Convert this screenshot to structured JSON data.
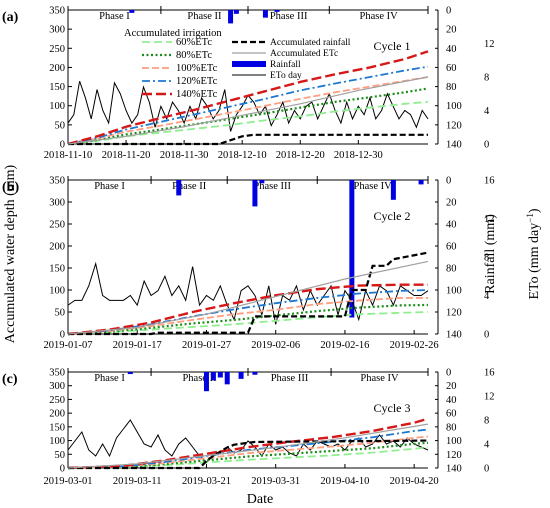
{
  "figure": {
    "y_left_label": "Accumulated water depth (mm)",
    "y_right_rain_label": "Rainfall (mm)",
    "y_right_eto_label": "ETo (mm day",
    "y_right_eto_sup": "−1",
    "y_right_eto_close": ")",
    "x_label": "Date",
    "legend_title": "Accumulated irrigation",
    "legend": [
      {
        "label": "60%ETc",
        "color": "#90ee90",
        "dash": "8,4",
        "width": 1.8
      },
      {
        "label": "80%ETc",
        "color": "#1a8c1a",
        "dash": "2,2.5",
        "width": 2.2
      },
      {
        "label": "100%ETc",
        "color": "#ff9e80",
        "dash": "7,3",
        "width": 1.8
      },
      {
        "label": "120%ETc",
        "color": "#1e78d2",
        "dash": "8,3,2,3",
        "width": 1.8
      },
      {
        "label": "140%ETc",
        "color": "#d61818",
        "dash": "10,4",
        "width": 2.4
      },
      {
        "label": "Accumulated rainfall",
        "color": "#000000",
        "dash": "6,3",
        "width": 2.2
      },
      {
        "label": "Accumulated ETc",
        "color": "#a0a0a0",
        "dash": "",
        "width": 1.2
      },
      {
        "label": "Rainfall",
        "color": "#0000e0",
        "dash": "",
        "width": 6
      },
      {
        "label": "ETo day",
        "color": "#000000",
        "dash": "",
        "width": 1
      }
    ]
  },
  "chart_data": [
    {
      "type": "line",
      "panel_label": "(a)",
      "cycle_label": "Cycle 1",
      "phases": [
        "Phase I",
        "Phase II",
        "Phase III",
        "Phase IV"
      ],
      "x_ticks": [
        "2018-11-10",
        "2018-11-20",
        "2018-11-30",
        "2018-12-10",
        "2018-12-20",
        "2018-12-30"
      ],
      "x_range_days": [
        0,
        62
      ],
      "phase_boundaries_days": [
        0,
        16,
        31,
        45,
        62
      ],
      "y_left_range": [
        0,
        350
      ],
      "y_left_ticks": [
        0,
        50,
        100,
        150,
        200,
        250,
        300,
        350
      ],
      "y_rain_range": [
        0,
        140
      ],
      "y_rain_ticks": [
        0,
        20,
        40,
        60,
        80,
        100,
        120,
        140
      ],
      "y_eto_range": [
        0,
        16
      ],
      "y_eto_ticks": [
        0,
        4,
        8,
        12,
        16
      ],
      "y_eto_labels": [
        "0",
        "4",
        "8",
        "12",
        ""
      ],
      "series": [
        {
          "name": "60%ETc",
          "x": [
            0,
            5,
            10,
            16,
            22,
            28,
            34,
            40,
            46,
            52,
            58,
            62
          ],
          "y": [
            0,
            8,
            20,
            30,
            40,
            50,
            62,
            72,
            85,
            95,
            105,
            110
          ]
        },
        {
          "name": "80%ETc",
          "x": [
            0,
            5,
            10,
            16,
            22,
            28,
            34,
            40,
            46,
            52,
            58,
            62
          ],
          "y": [
            0,
            10,
            25,
            38,
            52,
            66,
            80,
            95,
            110,
            122,
            135,
            145
          ]
        },
        {
          "name": "100%ETc",
          "x": [
            0,
            5,
            10,
            16,
            22,
            28,
            34,
            40,
            46,
            52,
            58,
            62
          ],
          "y": [
            0,
            14,
            32,
            48,
            65,
            82,
            100,
            118,
            135,
            150,
            165,
            175
          ]
        },
        {
          "name": "120%ETc",
          "x": [
            0,
            5,
            10,
            16,
            22,
            28,
            34,
            40,
            46,
            52,
            58,
            62
          ],
          "y": [
            0,
            16,
            38,
            58,
            78,
            98,
            118,
            140,
            158,
            175,
            192,
            202
          ]
        },
        {
          "name": "140%ETc",
          "x": [
            0,
            5,
            10,
            16,
            22,
            28,
            34,
            40,
            46,
            52,
            58,
            62
          ],
          "y": [
            0,
            20,
            45,
            68,
            90,
            114,
            138,
            162,
            182,
            200,
            222,
            242
          ]
        },
        {
          "name": "Accumulated rainfall",
          "x": [
            0,
            26,
            28,
            30,
            32,
            62
          ],
          "y": [
            0,
            0,
            10,
            20,
            24,
            24
          ]
        },
        {
          "name": "Accumulated ETc",
          "x": [
            0,
            10,
            20,
            30,
            40,
            50,
            62
          ],
          "y": [
            0,
            20,
            45,
            75,
            105,
            140,
            175
          ]
        }
      ],
      "rainfall": {
        "x": [
          11,
          28,
          29,
          34,
          36
        ],
        "y": [
          3,
          14,
          4,
          8,
          2
        ]
      },
      "eto": {
        "x": [
          0,
          1,
          2,
          3,
          4,
          5,
          6,
          7,
          8,
          9,
          10,
          11,
          12,
          13,
          14,
          15,
          16,
          17,
          18,
          19,
          20,
          21,
          22,
          23,
          24,
          25,
          26,
          27,
          28,
          29,
          30,
          31,
          32,
          33,
          34,
          35,
          36,
          37,
          38,
          39,
          40,
          41,
          42,
          43,
          44,
          45,
          46,
          47,
          48,
          49,
          50,
          51,
          52,
          53,
          54,
          55,
          56,
          57,
          58,
          59,
          60,
          61,
          62
        ],
        "y": [
          2.5,
          3.5,
          7.5,
          5.5,
          3,
          6.5,
          4,
          2.5,
          7.3,
          6,
          4,
          2.5,
          3.5,
          6.8,
          5,
          2,
          4.5,
          3,
          5,
          4,
          2.5,
          4.5,
          3,
          5.5,
          4.5,
          3,
          4,
          6.5,
          1.5,
          3.5,
          4.5,
          5.8,
          5,
          3.5,
          4.5,
          2.2,
          3.5,
          5,
          2.5,
          4,
          3,
          4.5,
          5,
          3,
          4.5,
          6,
          4,
          2.5,
          5,
          3,
          4.5,
          3.5,
          5.5,
          3,
          4,
          6,
          4.5,
          3,
          4,
          3.5,
          2,
          4,
          3
        ]
      }
    },
    {
      "type": "line",
      "panel_label": "(b)",
      "cycle_label": "Cycle 2",
      "phases": [
        "Phase I",
        "Phase II",
        "Phase III",
        "Phase IV"
      ],
      "x_ticks": [
        "2019-01-07",
        "2019-01-17",
        "2019-01-27",
        "2019-02-06",
        "2019-02-16",
        "2019-02-26"
      ],
      "x_range_days": [
        0,
        52
      ],
      "phase_boundaries_days": [
        0,
        12,
        23,
        36,
        52
      ],
      "y_left_range": [
        0,
        350
      ],
      "y_left_ticks": [
        0,
        50,
        100,
        150,
        200,
        250,
        300,
        350
      ],
      "y_rain_range": [
        0,
        140
      ],
      "y_rain_ticks": [
        0,
        20,
        40,
        60,
        80,
        100,
        120,
        140
      ],
      "y_eto_range": [
        0,
        16
      ],
      "y_eto_ticks": [
        0,
        4,
        8,
        12,
        16
      ],
      "y_eto_labels": [
        "0",
        "4",
        "8",
        "12",
        "16"
      ],
      "series": [
        {
          "name": "60%ETc",
          "x": [
            0,
            6,
            12,
            18,
            24,
            30,
            36,
            42,
            48,
            52
          ],
          "y": [
            0,
            4,
            10,
            16,
            22,
            30,
            38,
            45,
            48,
            50
          ]
        },
        {
          "name": "80%ETc",
          "x": [
            0,
            6,
            12,
            18,
            24,
            30,
            36,
            42,
            48,
            52
          ],
          "y": [
            0,
            5,
            14,
            24,
            32,
            42,
            52,
            60,
            65,
            66
          ]
        },
        {
          "name": "100%ETc",
          "x": [
            0,
            6,
            12,
            18,
            24,
            30,
            36,
            42,
            48,
            52
          ],
          "y": [
            0,
            7,
            18,
            32,
            45,
            55,
            68,
            76,
            82,
            82
          ]
        },
        {
          "name": "120%ETc",
          "x": [
            0,
            6,
            12,
            18,
            24,
            30,
            36,
            42,
            48,
            52
          ],
          "y": [
            0,
            8,
            22,
            40,
            56,
            70,
            82,
            92,
            98,
            100
          ]
        },
        {
          "name": "140%ETc",
          "x": [
            0,
            6,
            12,
            18,
            24,
            30,
            36,
            42,
            48,
            52
          ],
          "y": [
            0,
            10,
            26,
            50,
            70,
            88,
            102,
            110,
            112,
            112
          ]
        },
        {
          "name": "Accumulated rainfall",
          "x": [
            0,
            12,
            13,
            26,
            27,
            40,
            41,
            43,
            44,
            46,
            47,
            52
          ],
          "y": [
            0,
            0,
            3,
            3,
            40,
            40,
            100,
            100,
            155,
            155,
            170,
            185
          ]
        },
        {
          "name": "Accumulated ETc",
          "x": [
            0,
            10,
            20,
            30,
            40,
            52
          ],
          "y": [
            0,
            15,
            45,
            85,
            125,
            165
          ]
        }
      ],
      "rainfall": {
        "x": [
          16,
          27,
          28,
          41,
          47,
          51
        ],
        "y": [
          14,
          24,
          3,
          125,
          18,
          4
        ]
      },
      "eto": {
        "x": [
          0,
          1,
          2,
          3,
          4,
          5,
          6,
          7,
          8,
          9,
          10,
          11,
          12,
          13,
          14,
          15,
          16,
          17,
          18,
          19,
          20,
          21,
          22,
          23,
          24,
          25,
          26,
          27,
          28,
          29,
          30,
          31,
          32,
          33,
          34,
          35,
          36,
          37,
          38,
          39,
          40,
          41,
          42,
          43,
          44,
          45,
          46,
          47,
          48,
          49,
          50,
          51,
          52
        ],
        "y": [
          3,
          3.5,
          3.5,
          5,
          7.3,
          4,
          3.5,
          3.5,
          3.5,
          4,
          3,
          5.5,
          4,
          4.5,
          6,
          4,
          5,
          3.5,
          7,
          3,
          4,
          3.5,
          5,
          3,
          1.5,
          4.5,
          5,
          4,
          2,
          5,
          1,
          4,
          3.5,
          5,
          2.5,
          4.5,
          3,
          4,
          5,
          2,
          4.5,
          3.5,
          1.5,
          4.5,
          3,
          5,
          4.5,
          3,
          5,
          4.5,
          4,
          4,
          4.5
        ]
      }
    },
    {
      "type": "line",
      "panel_label": "(c)",
      "cycle_label": "Cycle 3",
      "phases": [
        "Phase I",
        "Phase II",
        "Phase III",
        "Phase IV"
      ],
      "x_ticks": [
        "2019-03-01",
        "2019-03-11",
        "2019-03-21",
        "2019-03-31",
        "2019-04-10",
        "2019-04-20"
      ],
      "x_range_days": [
        0,
        52
      ],
      "phase_boundaries_days": [
        0,
        12,
        26,
        38,
        52
      ],
      "y_left_range": [
        0,
        350
      ],
      "y_left_ticks": [
        0,
        50,
        100,
        150,
        200,
        250,
        300,
        350
      ],
      "y_rain_range": [
        0,
        140
      ],
      "y_rain_ticks": [
        0,
        20,
        40,
        60,
        80,
        100,
        120,
        140
      ],
      "y_eto_range": [
        0,
        16
      ],
      "y_eto_ticks": [
        0,
        4,
        8,
        12,
        16
      ],
      "y_eto_labels": [
        "0",
        "4",
        "8",
        "12",
        "16"
      ],
      "series": [
        {
          "name": "60%ETc",
          "x": [
            0,
            8,
            14,
            20,
            26,
            32,
            38,
            44,
            50,
            52
          ],
          "y": [
            0,
            3,
            10,
            20,
            30,
            38,
            46,
            56,
            70,
            75
          ]
        },
        {
          "name": "80%ETc",
          "x": [
            0,
            8,
            14,
            20,
            26,
            32,
            38,
            44,
            50,
            52
          ],
          "y": [
            0,
            4,
            14,
            28,
            42,
            52,
            62,
            72,
            88,
            92
          ]
        },
        {
          "name": "100%ETc",
          "x": [
            0,
            8,
            14,
            20,
            26,
            32,
            38,
            44,
            50,
            52
          ],
          "y": [
            0,
            5,
            18,
            36,
            54,
            66,
            78,
            92,
            110,
            115
          ]
        },
        {
          "name": "120%ETc",
          "x": [
            0,
            8,
            14,
            20,
            26,
            32,
            38,
            44,
            50,
            52
          ],
          "y": [
            0,
            6,
            22,
            44,
            66,
            80,
            95,
            112,
            135,
            140
          ]
        },
        {
          "name": "140%ETc",
          "x": [
            0,
            8,
            14,
            20,
            26,
            32,
            38,
            44,
            50,
            52
          ],
          "y": [
            0,
            8,
            28,
            52,
            76,
            95,
            112,
            135,
            165,
            180
          ]
        },
        {
          "name": "Accumulated rainfall",
          "x": [
            0,
            19,
            20,
            21,
            22,
            23,
            24,
            26,
            27,
            52
          ],
          "y": [
            0,
            0,
            25,
            45,
            60,
            75,
            85,
            92,
            95,
            100
          ]
        },
        {
          "name": "Accumulated ETc",
          "x": [
            0,
            10,
            20,
            30,
            40,
            52
          ],
          "y": [
            0,
            15,
            45,
            75,
            110,
            160
          ]
        }
      ],
      "rainfall": {
        "x": [
          9,
          20,
          21,
          22,
          23,
          25,
          27
        ],
        "y": [
          3,
          28,
          12,
          8,
          18,
          10,
          4
        ]
      },
      "eto": {
        "x": [
          0,
          1,
          2,
          3,
          4,
          5,
          6,
          7,
          8,
          9,
          10,
          11,
          12,
          13,
          14,
          15,
          16,
          17,
          18,
          19,
          20,
          21,
          22,
          23,
          24,
          25,
          26,
          27,
          28,
          29,
          30,
          31,
          32,
          33,
          34,
          35,
          36,
          37,
          38,
          39,
          40,
          41,
          42,
          43,
          44,
          45,
          46,
          47,
          48,
          49,
          50,
          51,
          52
        ],
        "y": [
          3,
          4.5,
          6,
          3,
          2,
          4,
          2,
          5,
          6.5,
          8,
          6,
          4,
          3.5,
          5.5,
          3,
          2,
          4,
          5,
          3.5,
          2,
          1,
          2,
          2.5,
          3.5,
          2.5,
          3,
          4.5,
          3.5,
          2,
          4,
          3,
          3.5,
          2.5,
          2,
          4,
          3,
          4.5,
          4,
          3.5,
          4,
          3,
          4.5,
          5,
          3.5,
          4,
          5.5,
          4,
          4.5,
          3.5,
          5,
          4,
          3.5,
          3
        ]
      }
    }
  ]
}
